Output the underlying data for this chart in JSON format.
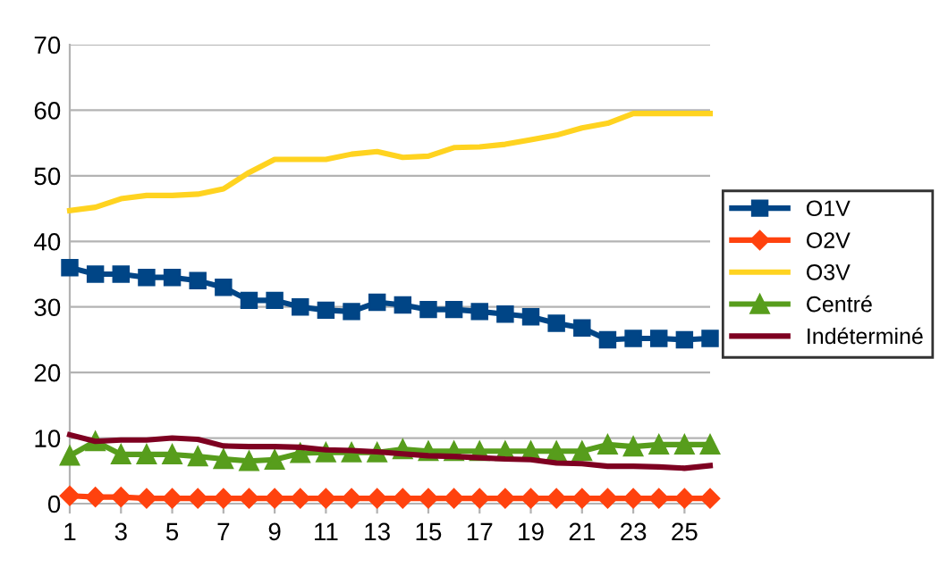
{
  "chart_data": {
    "type": "line",
    "x": [
      1,
      2,
      3,
      4,
      5,
      6,
      7,
      8,
      9,
      10,
      11,
      12,
      13,
      14,
      15,
      16,
      17,
      18,
      19,
      20,
      21,
      22,
      23,
      24,
      25,
      26
    ],
    "xlim": [
      1,
      26
    ],
    "xticks": [
      1,
      3,
      5,
      7,
      9,
      11,
      13,
      15,
      17,
      19,
      21,
      23,
      25
    ],
    "ylim": [
      0,
      70
    ],
    "yticks": [
      0,
      10,
      20,
      30,
      40,
      50,
      60,
      70
    ],
    "grid": "y",
    "legend": "right",
    "series": [
      {
        "name": "O1V",
        "color": "#004586",
        "marker": "square",
        "values": [
          36,
          35,
          35,
          34.5,
          34.5,
          34,
          33,
          31,
          31,
          30,
          29.5,
          29.3,
          30.7,
          30.3,
          29.6,
          29.6,
          29.3,
          28.9,
          28.5,
          27.5,
          26.8,
          25,
          25.2,
          25.2,
          25,
          25.2
        ]
      },
      {
        "name": "O2V",
        "color": "#ff420e",
        "marker": "diamond",
        "values": [
          1.2,
          1,
          1,
          0.8,
          0.8,
          0.8,
          0.8,
          0.8,
          0.8,
          0.8,
          0.8,
          0.8,
          0.8,
          0.8,
          0.8,
          0.8,
          0.8,
          0.8,
          0.8,
          0.8,
          0.8,
          0.8,
          0.8,
          0.8,
          0.8,
          0.8
        ]
      },
      {
        "name": "O3V",
        "color": "#ffd320",
        "marker": "none",
        "values": [
          44.7,
          45.2,
          46.5,
          47,
          47,
          47.2,
          48,
          50.5,
          52.5,
          52.5,
          52.5,
          53.3,
          53.7,
          52.8,
          53,
          54.3,
          54.4,
          54.8,
          55.5,
          56.2,
          57.3,
          58,
          59.5,
          59.5,
          59.5,
          59.5
        ]
      },
      {
        "name": "Centré",
        "color": "#579d1c",
        "marker": "triangle",
        "values": [
          7.3,
          9.5,
          7.5,
          7.5,
          7.5,
          7.2,
          6.8,
          6.5,
          6.7,
          7.7,
          7.8,
          7.8,
          7.8,
          8.3,
          8,
          8,
          8,
          8,
          8,
          8,
          8,
          9,
          8.7,
          9,
          9,
          9
        ]
      },
      {
        "name": "Indéterminé",
        "color": "#7e0021",
        "marker": "none",
        "values": [
          10.5,
          9.5,
          9.7,
          9.7,
          10,
          9.8,
          8.8,
          8.7,
          8.7,
          8.6,
          8.2,
          8.1,
          7.9,
          7.6,
          7.3,
          7.2,
          7,
          6.8,
          6.7,
          6.2,
          6.1,
          5.7,
          5.7,
          5.6,
          5.4,
          5.8
        ]
      }
    ]
  }
}
